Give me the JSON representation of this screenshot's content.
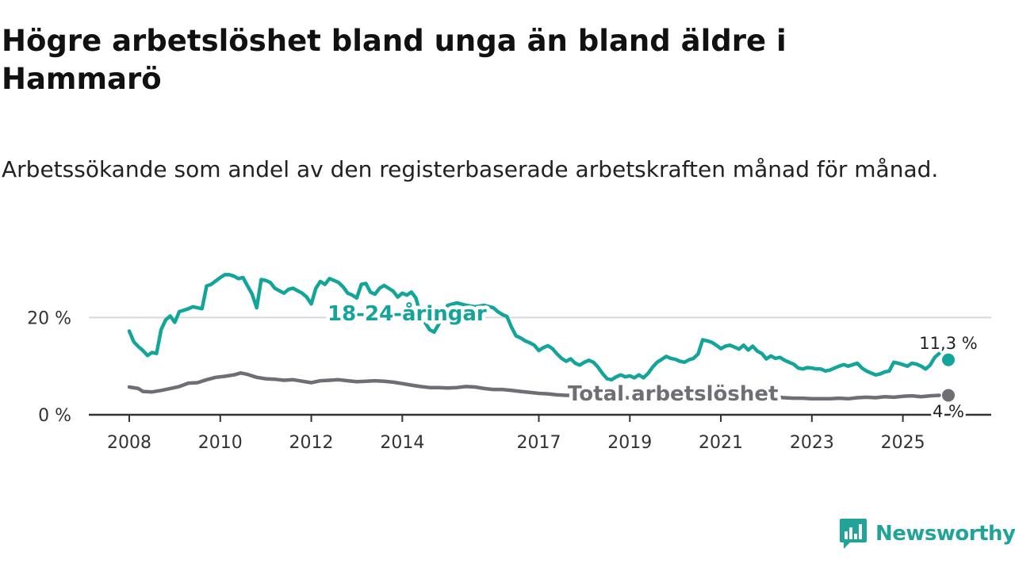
{
  "header": {
    "title": "Högre arbetslöshet bland unga än bland äldre i Hammarö",
    "subtitle": "Arbetssökande som andel av den registerbaserade arbetskraften månad för månad."
  },
  "brand": {
    "name": "Newsworthy",
    "icon": "bar-chart-speech-icon",
    "color": "#22a39a"
  },
  "colors": {
    "youth": "#14a59a",
    "total": "#6e6e75",
    "axis": "#333333",
    "grid": "#d9d9d9"
  },
  "chart_data": {
    "type": "line",
    "title": "Högre arbetslöshet bland unga än bland äldre i Hammarö",
    "subtitle": "Arbetssökande som andel av den registerbaserade arbetskraften månad för månad.",
    "xlabel": "",
    "ylabel": "",
    "xlim": [
      2007.9,
      2026.4
    ],
    "ylim": [
      0,
      30
    ],
    "x_ticks": [
      2008,
      2010,
      2012,
      2014,
      2017,
      2019,
      2021,
      2023,
      2025
    ],
    "x_tick_labels": [
      "2008",
      "2010",
      "2012",
      "2014",
      "2017",
      "2019",
      "2021",
      "2023",
      "2025"
    ],
    "y_ticks": [
      0,
      20
    ],
    "y_tick_labels": [
      "0 %",
      "20 %"
    ],
    "grid": "horizontal",
    "series": [
      {
        "name": "18-24-åringar",
        "label": "18-24-åringar",
        "end_label": "11,3 %",
        "end_value": 11.3,
        "points": [
          [
            2008.0,
            17.2
          ],
          [
            2008.1,
            15.0
          ],
          [
            2008.2,
            14.0
          ],
          [
            2008.3,
            13.2
          ],
          [
            2008.4,
            12.2
          ],
          [
            2008.5,
            12.8
          ],
          [
            2008.6,
            12.6
          ],
          [
            2008.7,
            17.5
          ],
          [
            2008.8,
            19.5
          ],
          [
            2008.9,
            20.3
          ],
          [
            2009.0,
            19.0
          ],
          [
            2009.1,
            21.2
          ],
          [
            2009.2,
            21.5
          ],
          [
            2009.3,
            21.8
          ],
          [
            2009.4,
            22.2
          ],
          [
            2009.5,
            22.0
          ],
          [
            2009.6,
            21.8
          ],
          [
            2009.7,
            26.5
          ],
          [
            2009.8,
            26.8
          ],
          [
            2009.9,
            27.5
          ],
          [
            2010.0,
            28.2
          ],
          [
            2010.1,
            28.8
          ],
          [
            2010.2,
            28.8
          ],
          [
            2010.3,
            28.5
          ],
          [
            2010.4,
            28.0
          ],
          [
            2010.5,
            28.2
          ],
          [
            2010.6,
            26.5
          ],
          [
            2010.7,
            24.8
          ],
          [
            2010.8,
            22.0
          ],
          [
            2010.9,
            27.8
          ],
          [
            2011.0,
            27.6
          ],
          [
            2011.1,
            27.2
          ],
          [
            2011.2,
            26.0
          ],
          [
            2011.3,
            25.5
          ],
          [
            2011.4,
            25.0
          ],
          [
            2011.5,
            25.8
          ],
          [
            2011.6,
            26.0
          ],
          [
            2011.7,
            25.5
          ],
          [
            2011.8,
            25.0
          ],
          [
            2011.9,
            24.2
          ],
          [
            2012.0,
            22.8
          ],
          [
            2012.1,
            26.0
          ],
          [
            2012.2,
            27.4
          ],
          [
            2012.3,
            26.8
          ],
          [
            2012.4,
            28.0
          ],
          [
            2012.5,
            27.6
          ],
          [
            2012.6,
            27.2
          ],
          [
            2012.7,
            26.3
          ],
          [
            2012.8,
            25.0
          ],
          [
            2012.9,
            24.6
          ],
          [
            2013.0,
            24.0
          ],
          [
            2013.1,
            26.8
          ],
          [
            2013.2,
            27.0
          ],
          [
            2013.3,
            25.2
          ],
          [
            2013.4,
            24.8
          ],
          [
            2013.5,
            26.0
          ],
          [
            2013.6,
            26.6
          ],
          [
            2013.7,
            26.0
          ],
          [
            2013.8,
            25.4
          ],
          [
            2013.9,
            24.2
          ],
          [
            2014.0,
            25.0
          ],
          [
            2014.1,
            24.6
          ],
          [
            2014.2,
            25.2
          ],
          [
            2014.3,
            24.0
          ],
          [
            2014.4,
            20.6
          ],
          [
            2014.5,
            19.0
          ],
          [
            2014.6,
            17.5
          ],
          [
            2014.7,
            17.0
          ],
          [
            2014.8,
            18.6
          ],
          [
            2014.9,
            21.0
          ],
          [
            2015.0,
            22.5
          ],
          [
            2015.2,
            23.0
          ],
          [
            2015.4,
            22.5
          ],
          [
            2015.6,
            22.2
          ],
          [
            2015.8,
            22.5
          ],
          [
            2016.0,
            22.0
          ],
          [
            2016.1,
            21.2
          ],
          [
            2016.2,
            20.6
          ],
          [
            2016.3,
            20.2
          ],
          [
            2016.4,
            18.0
          ],
          [
            2016.5,
            16.2
          ],
          [
            2016.6,
            15.8
          ],
          [
            2016.7,
            15.2
          ],
          [
            2016.8,
            14.8
          ],
          [
            2016.9,
            14.3
          ],
          [
            2017.0,
            13.2
          ],
          [
            2017.1,
            13.8
          ],
          [
            2017.2,
            14.2
          ],
          [
            2017.3,
            13.6
          ],
          [
            2017.4,
            12.5
          ],
          [
            2017.5,
            11.6
          ],
          [
            2017.6,
            11.0
          ],
          [
            2017.7,
            11.5
          ],
          [
            2017.8,
            10.6
          ],
          [
            2017.9,
            10.2
          ],
          [
            2018.0,
            10.8
          ],
          [
            2018.1,
            11.2
          ],
          [
            2018.2,
            10.8
          ],
          [
            2018.3,
            9.8
          ],
          [
            2018.4,
            8.5
          ],
          [
            2018.5,
            7.4
          ],
          [
            2018.6,
            7.2
          ],
          [
            2018.7,
            7.8
          ],
          [
            2018.8,
            8.2
          ],
          [
            2018.9,
            7.8
          ],
          [
            2019.0,
            8.0
          ],
          [
            2019.1,
            7.6
          ],
          [
            2019.2,
            8.2
          ],
          [
            2019.3,
            7.6
          ],
          [
            2019.4,
            8.5
          ],
          [
            2019.5,
            9.8
          ],
          [
            2019.6,
            10.8
          ],
          [
            2019.7,
            11.4
          ],
          [
            2019.8,
            12.0
          ],
          [
            2019.9,
            11.6
          ],
          [
            2020.0,
            11.4
          ],
          [
            2020.1,
            11.0
          ],
          [
            2020.2,
            10.8
          ],
          [
            2020.3,
            11.3
          ],
          [
            2020.4,
            11.6
          ],
          [
            2020.5,
            12.5
          ],
          [
            2020.6,
            15.4
          ],
          [
            2020.7,
            15.2
          ],
          [
            2020.8,
            14.9
          ],
          [
            2020.9,
            14.3
          ],
          [
            2021.0,
            13.6
          ],
          [
            2021.1,
            14.1
          ],
          [
            2021.2,
            14.3
          ],
          [
            2021.3,
            13.9
          ],
          [
            2021.4,
            13.5
          ],
          [
            2021.5,
            14.3
          ],
          [
            2021.6,
            13.3
          ],
          [
            2021.7,
            14.1
          ],
          [
            2021.8,
            13.1
          ],
          [
            2021.9,
            12.6
          ],
          [
            2022.0,
            11.5
          ],
          [
            2022.1,
            12.1
          ],
          [
            2022.2,
            11.6
          ],
          [
            2022.3,
            11.8
          ],
          [
            2022.4,
            11.2
          ],
          [
            2022.5,
            10.8
          ],
          [
            2022.6,
            10.4
          ],
          [
            2022.7,
            9.6
          ],
          [
            2022.8,
            9.4
          ],
          [
            2022.9,
            9.7
          ],
          [
            2023.0,
            9.6
          ],
          [
            2023.1,
            9.4
          ],
          [
            2023.2,
            9.4
          ],
          [
            2023.3,
            9.0
          ],
          [
            2023.4,
            9.2
          ],
          [
            2023.5,
            9.6
          ],
          [
            2023.6,
            10.0
          ],
          [
            2023.7,
            10.3
          ],
          [
            2023.8,
            10.0
          ],
          [
            2023.9,
            10.3
          ],
          [
            2024.0,
            10.6
          ],
          [
            2024.1,
            9.6
          ],
          [
            2024.2,
            9.0
          ],
          [
            2024.3,
            8.6
          ],
          [
            2024.4,
            8.2
          ],
          [
            2024.5,
            8.4
          ],
          [
            2024.6,
            8.8
          ],
          [
            2024.7,
            9.0
          ],
          [
            2024.8,
            10.8
          ],
          [
            2024.9,
            10.6
          ],
          [
            2025.0,
            10.3
          ],
          [
            2025.1,
            10.0
          ],
          [
            2025.2,
            10.6
          ],
          [
            2025.3,
            10.4
          ],
          [
            2025.4,
            10.0
          ],
          [
            2025.5,
            9.4
          ],
          [
            2025.6,
            10.2
          ],
          [
            2025.7,
            11.8
          ],
          [
            2025.8,
            12.6
          ],
          [
            2026.0,
            11.3
          ]
        ]
      },
      {
        "name": "Total arbetslöshet",
        "label": "Total arbetslöshet",
        "end_label": "4 %",
        "end_value": 4.0,
        "points": [
          [
            2008.0,
            5.7
          ],
          [
            2008.2,
            5.4
          ],
          [
            2008.3,
            4.8
          ],
          [
            2008.5,
            4.7
          ],
          [
            2008.7,
            5.0
          ],
          [
            2008.9,
            5.4
          ],
          [
            2009.1,
            5.8
          ],
          [
            2009.3,
            6.5
          ],
          [
            2009.5,
            6.6
          ],
          [
            2009.7,
            7.2
          ],
          [
            2009.9,
            7.7
          ],
          [
            2010.1,
            7.9
          ],
          [
            2010.3,
            8.2
          ],
          [
            2010.45,
            8.6
          ],
          [
            2010.6,
            8.3
          ],
          [
            2010.8,
            7.7
          ],
          [
            2011.0,
            7.4
          ],
          [
            2011.2,
            7.3
          ],
          [
            2011.4,
            7.1
          ],
          [
            2011.6,
            7.2
          ],
          [
            2011.8,
            6.9
          ],
          [
            2012.0,
            6.6
          ],
          [
            2012.2,
            7.0
          ],
          [
            2012.4,
            7.1
          ],
          [
            2012.6,
            7.2
          ],
          [
            2012.8,
            7.0
          ],
          [
            2013.0,
            6.8
          ],
          [
            2013.2,
            6.9
          ],
          [
            2013.4,
            7.0
          ],
          [
            2013.6,
            6.9
          ],
          [
            2013.8,
            6.7
          ],
          [
            2014.0,
            6.4
          ],
          [
            2014.2,
            6.1
          ],
          [
            2014.4,
            5.8
          ],
          [
            2014.6,
            5.6
          ],
          [
            2014.8,
            5.6
          ],
          [
            2015.0,
            5.5
          ],
          [
            2015.2,
            5.6
          ],
          [
            2015.4,
            5.8
          ],
          [
            2015.6,
            5.7
          ],
          [
            2015.8,
            5.4
          ],
          [
            2016.0,
            5.2
          ],
          [
            2016.2,
            5.2
          ],
          [
            2016.4,
            5.0
          ],
          [
            2016.6,
            4.8
          ],
          [
            2016.8,
            4.6
          ],
          [
            2017.0,
            4.4
          ],
          [
            2017.2,
            4.3
          ],
          [
            2017.4,
            4.1
          ],
          [
            2017.6,
            4.0
          ],
          [
            2017.8,
            4.0
          ],
          [
            2018.0,
            3.8
          ],
          [
            2018.2,
            3.7
          ],
          [
            2018.4,
            3.6
          ],
          [
            2018.6,
            3.6
          ],
          [
            2018.8,
            3.5
          ],
          [
            2019.0,
            3.5
          ],
          [
            2019.2,
            3.5
          ],
          [
            2019.4,
            3.6
          ],
          [
            2019.6,
            3.7
          ],
          [
            2019.8,
            3.8
          ],
          [
            2020.0,
            4.0
          ],
          [
            2020.2,
            4.1
          ],
          [
            2020.4,
            4.2
          ],
          [
            2020.6,
            4.3
          ],
          [
            2020.8,
            4.2
          ],
          [
            2021.0,
            4.0
          ],
          [
            2021.2,
            3.9
          ],
          [
            2021.4,
            3.8
          ],
          [
            2021.6,
            3.7
          ],
          [
            2021.8,
            3.7
          ],
          [
            2022.0,
            3.6
          ],
          [
            2022.2,
            3.6
          ],
          [
            2022.4,
            3.5
          ],
          [
            2022.6,
            3.4
          ],
          [
            2022.8,
            3.4
          ],
          [
            2023.0,
            3.3
          ],
          [
            2023.2,
            3.3
          ],
          [
            2023.4,
            3.3
          ],
          [
            2023.6,
            3.4
          ],
          [
            2023.8,
            3.3
          ],
          [
            2024.0,
            3.5
          ],
          [
            2024.2,
            3.6
          ],
          [
            2024.4,
            3.5
          ],
          [
            2024.6,
            3.7
          ],
          [
            2024.8,
            3.6
          ],
          [
            2025.0,
            3.8
          ],
          [
            2025.2,
            3.9
          ],
          [
            2025.4,
            3.7
          ],
          [
            2025.6,
            3.9
          ],
          [
            2025.8,
            4.0
          ],
          [
            2026.0,
            4.0
          ]
        ]
      }
    ]
  }
}
